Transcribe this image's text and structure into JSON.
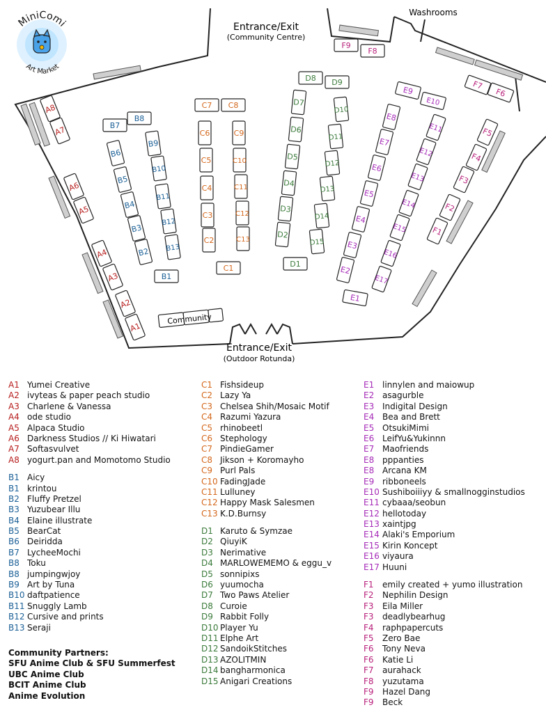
{
  "colors": {
    "A": "#b71c1c",
    "B": "#1a5f96",
    "C": "#d4671b",
    "D": "#3a7a3a",
    "E": "#a62bb8",
    "F": "#b81f7a",
    "wall": "#222222",
    "window": "#cfcfcf"
  },
  "logo": {
    "title": "MiniComi",
    "subtitle": "Art Market",
    "icon": "cat-mascot-icon"
  },
  "map_labels": {
    "entrance_top": "Entrance/Exit",
    "entrance_top_sub": "(Community Centre)",
    "entrance_bottom": "Entrance/Exit",
    "entrance_bottom_sub": "(Outdoor Rotunda)",
    "washrooms": "Washrooms",
    "community": "Community"
  },
  "tables": [
    "A1",
    "A2",
    "A3",
    "A4",
    "A5",
    "A6",
    "A7",
    "A8",
    "B1",
    "B2",
    "B3",
    "B4",
    "B5",
    "B6",
    "B7",
    "B8",
    "B9",
    "B10",
    "B11",
    "B12",
    "B13",
    "C1",
    "C2",
    "C3",
    "C4",
    "C5",
    "C6",
    "C7",
    "C8",
    "C9",
    "C10",
    "C11",
    "C12",
    "C13",
    "D1",
    "D2",
    "D3",
    "D4",
    "D5",
    "D6",
    "D7",
    "D8",
    "D9",
    "D10",
    "D11",
    "D12",
    "D13",
    "D14",
    "D15",
    "E1",
    "E2",
    "E3",
    "E4",
    "E5",
    "E6",
    "E7",
    "E8",
    "E9",
    "E10",
    "E11",
    "E12",
    "E13",
    "E14",
    "E15",
    "E16",
    "E17",
    "F1",
    "F2",
    "F3",
    "F4",
    "F5",
    "F6",
    "F7",
    "F8",
    "F9"
  ],
  "legend": {
    "col1": [
      {
        "code": "A1",
        "name": "Yumei Creative",
        "g": "A"
      },
      {
        "code": "A2",
        "name": "ivyteas & paper peach studio",
        "g": "A"
      },
      {
        "code": "A3",
        "name": "Charlene & Vanessa",
        "g": "A"
      },
      {
        "code": "A4",
        "name": "ode studio",
        "g": "A"
      },
      {
        "code": "A5",
        "name": "Alpaca Studio",
        "g": "A"
      },
      {
        "code": "A6",
        "name": "Darkness Studios // Ki Hiwatari",
        "g": "A"
      },
      {
        "code": "A7",
        "name": "Softasvulvet",
        "g": "A"
      },
      {
        "code": "A8",
        "name": "yogurt.pan and Momotomo Studio",
        "g": "A"
      },
      {
        "gap": true
      },
      {
        "code": "B1",
        "name": "Aicy",
        "g": "B"
      },
      {
        "code": "B1",
        "name": "krintou",
        "g": "B"
      },
      {
        "code": "B2",
        "name": "Fluffy Pretzel",
        "g": "B"
      },
      {
        "code": "B3",
        "name": "Yuzubear Illu",
        "g": "B"
      },
      {
        "code": "B4",
        "name": "Elaine illustrate",
        "g": "B"
      },
      {
        "code": "B5",
        "name": "BearCat",
        "g": "B"
      },
      {
        "code": "B6",
        "name": "Deiridda",
        "g": "B"
      },
      {
        "code": "B7",
        "name": "LycheeMochi",
        "g": "B"
      },
      {
        "code": "B8",
        "name": "Toku",
        "g": "B"
      },
      {
        "code": "B8",
        "name": "jumpingwjoy",
        "g": "B"
      },
      {
        "code": "B9",
        "name": "Art by Tuna",
        "g": "B"
      },
      {
        "code": "B10",
        "name": "daftpatience",
        "g": "B"
      },
      {
        "code": "B11",
        "name": "Snuggly Lamb",
        "g": "B"
      },
      {
        "code": "B12",
        "name": "Cursive and prints",
        "g": "B"
      },
      {
        "code": "B13",
        "name": "Seraji",
        "g": "B"
      }
    ],
    "col2": [
      {
        "code": "C1",
        "name": "Fishsideup",
        "g": "C"
      },
      {
        "code": "C2",
        "name": "Lazy Ya",
        "g": "C"
      },
      {
        "code": "C3",
        "name": "Chelsea Shih/Mosaic Motif",
        "g": "C"
      },
      {
        "code": "C4",
        "name": "Razumi Yazura",
        "g": "C"
      },
      {
        "code": "C5",
        "name": "rhinobeetl",
        "g": "C"
      },
      {
        "code": "C6",
        "name": "Stephology",
        "g": "C"
      },
      {
        "code": "C7",
        "name": "PindieGamer",
        "g": "C"
      },
      {
        "code": "C8",
        "name": "Jikson + Koromayho",
        "g": "C"
      },
      {
        "code": "C9",
        "name": "Purl Pals",
        "g": "C"
      },
      {
        "code": "C10",
        "name": "FadingJade",
        "g": "C"
      },
      {
        "code": "C11",
        "name": "Lulluney",
        "g": "C"
      },
      {
        "code": "C12",
        "name": "Happy Mask Salesmen",
        "g": "C"
      },
      {
        "code": "C13",
        "name": "K.D.Burnsy",
        "g": "C"
      },
      {
        "gap": true
      },
      {
        "code": "D1",
        "name": "Karuto & Symzae",
        "g": "D"
      },
      {
        "code": "D2",
        "name": "QiuyiK",
        "g": "D"
      },
      {
        "code": "D3",
        "name": "Nerimative",
        "g": "D"
      },
      {
        "code": "D4",
        "name": "MARLOWEMEMO & eggu_v",
        "g": "D"
      },
      {
        "code": "D5",
        "name": "sonnipixs",
        "g": "D"
      },
      {
        "code": "D6",
        "name": "yuumocha",
        "g": "D"
      },
      {
        "code": "D7",
        "name": "Two Paws Atelier",
        "g": "D"
      },
      {
        "code": "D8",
        "name": "Curoie",
        "g": "D"
      },
      {
        "code": "D9",
        "name": "Rabbit Folly",
        "g": "D"
      },
      {
        "code": "D10",
        "name": "Player Yu",
        "g": "D"
      },
      {
        "code": "D11",
        "name": "Elphe Art",
        "g": "D"
      },
      {
        "code": "D12",
        "name": "SandoikStitches",
        "g": "D"
      },
      {
        "code": "D13",
        "name": "AZOLITMIN",
        "g": "D"
      },
      {
        "code": "D14",
        "name": "bangharmonica",
        "g": "D"
      },
      {
        "code": "D15",
        "name": "Anigari Creations",
        "g": "D"
      }
    ],
    "col3": [
      {
        "code": "E1",
        "name": "linnylen and maiowup",
        "g": "E"
      },
      {
        "code": "E2",
        "name": "asagurble",
        "g": "E"
      },
      {
        "code": "E3",
        "name": "Indigital Design",
        "g": "E"
      },
      {
        "code": "E4",
        "name": "Bea and Brett",
        "g": "E"
      },
      {
        "code": "E5",
        "name": "OtsukiMimi",
        "g": "E"
      },
      {
        "code": "E6",
        "name": "LeifYu&Yukinnn",
        "g": "E"
      },
      {
        "code": "E7",
        "name": "Maofriends",
        "g": "E"
      },
      {
        "code": "E8",
        "name": "pppanties",
        "g": "E"
      },
      {
        "code": "E8",
        "name": "Arcana KM",
        "g": "E"
      },
      {
        "code": "E9",
        "name": "ribboneels",
        "g": "E"
      },
      {
        "code": "E10",
        "name": "Sushiboiiiyy & smallnogginstudios",
        "g": "E"
      },
      {
        "code": "E11",
        "name": "cybaaa/seobun",
        "g": "E"
      },
      {
        "code": "E12",
        "name": "hellotoday",
        "g": "E"
      },
      {
        "code": "E13",
        "name": "xaintjpg",
        "g": "E"
      },
      {
        "code": "E14",
        "name": "Alaki's Emporium",
        "g": "E"
      },
      {
        "code": "E15",
        "name": "Kirin Koncept",
        "g": "E"
      },
      {
        "code": "E16",
        "name": "viyaura",
        "g": "E"
      },
      {
        "code": "E17",
        "name": "Huuni",
        "g": "E"
      },
      {
        "gap": true
      },
      {
        "code": "F1",
        "name": "emily created + yumo illustration",
        "g": "F"
      },
      {
        "code": "F2",
        "name": "Nephilin Design",
        "g": "F"
      },
      {
        "code": "F3",
        "name": "Eila Miller",
        "g": "F"
      },
      {
        "code": "F3",
        "name": "deadlybearhug",
        "g": "F"
      },
      {
        "code": "F4",
        "name": "raphpapercuts",
        "g": "F"
      },
      {
        "code": "F5",
        "name": "Zero Bae",
        "g": "F"
      },
      {
        "code": "F6",
        "name": "Tony Neva",
        "g": "F"
      },
      {
        "code": "F6",
        "name": "Katie Li",
        "g": "F"
      },
      {
        "code": "F7",
        "name": "aurahack",
        "g": "F"
      },
      {
        "code": "F8",
        "name": "yuzutama",
        "g": "F"
      },
      {
        "code": "F9",
        "name": "Hazel Dang",
        "g": "F"
      },
      {
        "code": "F9",
        "name": "Beck",
        "g": "F"
      }
    ]
  },
  "community_partners": {
    "heading": "Community Partners:",
    "items": [
      "SFU Anime Club & SFU Summerfest",
      "UBC Anime Club",
      "BCIT Anime Club",
      "Anime Evolution"
    ]
  }
}
